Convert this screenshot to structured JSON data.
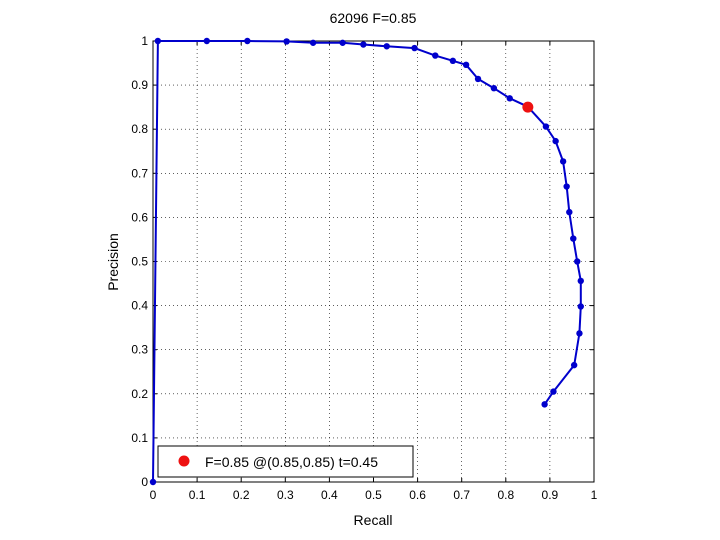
{
  "chart_data": {
    "type": "line",
    "title": "62096 F=0.85",
    "xlabel": "Recall",
    "ylabel": "Precision",
    "xlim": [
      0,
      1
    ],
    "ylim": [
      0,
      1
    ],
    "xticks": [
      "0",
      "0.1",
      "0.2",
      "0.3",
      "0.4",
      "0.5",
      "0.6",
      "0.7",
      "0.8",
      "0.9",
      "1"
    ],
    "yticks": [
      "0",
      "0.1",
      "0.2",
      "0.3",
      "0.4",
      "0.5",
      "0.6",
      "0.7",
      "0.8",
      "0.9",
      "1"
    ],
    "grid": true,
    "legend_position": "bottom-left",
    "series": [
      {
        "color": "#0000cc",
        "points": [
          [
            0.888,
            0.176
          ],
          [
            0.908,
            0.205
          ],
          [
            0.955,
            0.265
          ],
          [
            0.967,
            0.337
          ],
          [
            0.97,
            0.398
          ],
          [
            0.97,
            0.456
          ],
          [
            0.962,
            0.5
          ],
          [
            0.953,
            0.552
          ],
          [
            0.944,
            0.612
          ],
          [
            0.938,
            0.67
          ],
          [
            0.93,
            0.727
          ],
          [
            0.913,
            0.773
          ],
          [
            0.891,
            0.806
          ],
          [
            0.85,
            0.851
          ],
          [
            0.809,
            0.87
          ],
          [
            0.773,
            0.893
          ],
          [
            0.737,
            0.914
          ],
          [
            0.71,
            0.946
          ],
          [
            0.68,
            0.955
          ],
          [
            0.64,
            0.967
          ],
          [
            0.593,
            0.984
          ],
          [
            0.53,
            0.988
          ],
          [
            0.477,
            0.992
          ],
          [
            0.43,
            0.996
          ],
          [
            0.363,
            0.996
          ],
          [
            0.303,
            0.999
          ],
          [
            0.214,
            1.0
          ],
          [
            0.122,
            1.0
          ],
          [
            0.011,
            1.0
          ],
          [
            0.0,
            0.0
          ]
        ]
      }
    ],
    "highlight": {
      "x": 0.85,
      "y": 0.85,
      "color": "#ee1111"
    },
    "legend": {
      "label": "F=0.85 @(0.85,0.85) t=0.45"
    }
  }
}
